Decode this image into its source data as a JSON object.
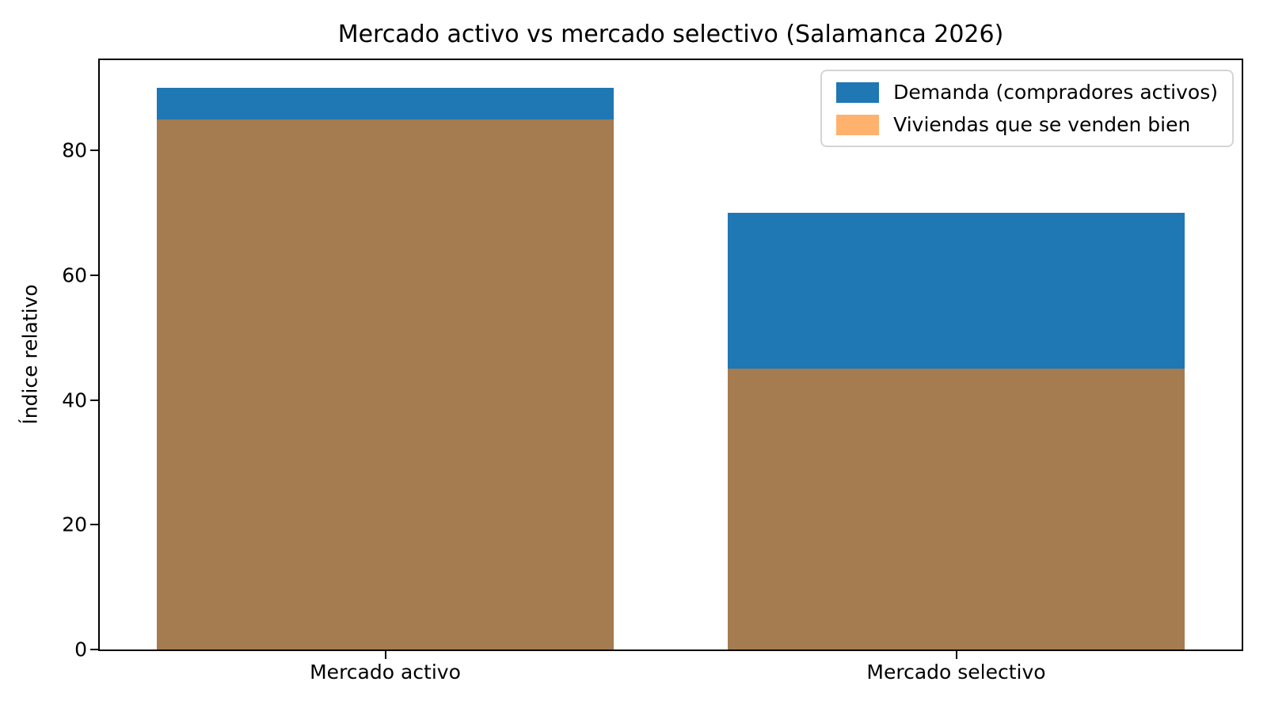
{
  "chart_data": {
    "type": "bar",
    "bar_mode": "overlay",
    "title": "Mercado activo vs mercado selectivo (Salamanca 2026)",
    "ylabel": "Índice relativo",
    "xlabel": "",
    "categories": [
      "Mercado activo",
      "Mercado selectivo"
    ],
    "series": [
      {
        "name": "Demanda (compradores activos)",
        "values": [
          90,
          70
        ],
        "color": "#1f77b4",
        "opacity": 1.0
      },
      {
        "name": "Viviendas que se venden bien",
        "values": [
          85,
          45
        ],
        "color": "#ff7f0e",
        "opacity": 0.6
      }
    ],
    "ylim": [
      0,
      94.5
    ],
    "yticks": [
      0,
      20,
      40,
      60,
      80
    ],
    "bar_width_fraction": 0.8,
    "grid": false,
    "legend_position": "upper right",
    "colors": {
      "axis": "#000000",
      "background": "#ffffff",
      "legend_border": "#d4d4d4",
      "overlap_result": "#a57c50"
    }
  }
}
